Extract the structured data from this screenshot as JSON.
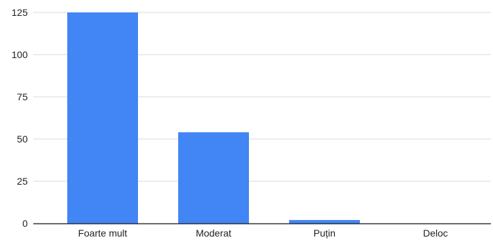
{
  "chart_data": {
    "type": "bar",
    "categories": [
      "Foarte mult",
      "Moderat",
      "Puțin",
      "Deloc"
    ],
    "values": [
      125,
      54,
      2,
      0
    ],
    "ylim": [
      0,
      125
    ],
    "yticks": [
      "0",
      "25",
      "50",
      "75",
      "100",
      "125"
    ],
    "grid": true,
    "legend": "none",
    "title": "",
    "xlabel": "",
    "ylabel": ""
  },
  "colors": {
    "bar": "#4285f4",
    "grid": "#d9d9d9",
    "axis": "#333333"
  }
}
